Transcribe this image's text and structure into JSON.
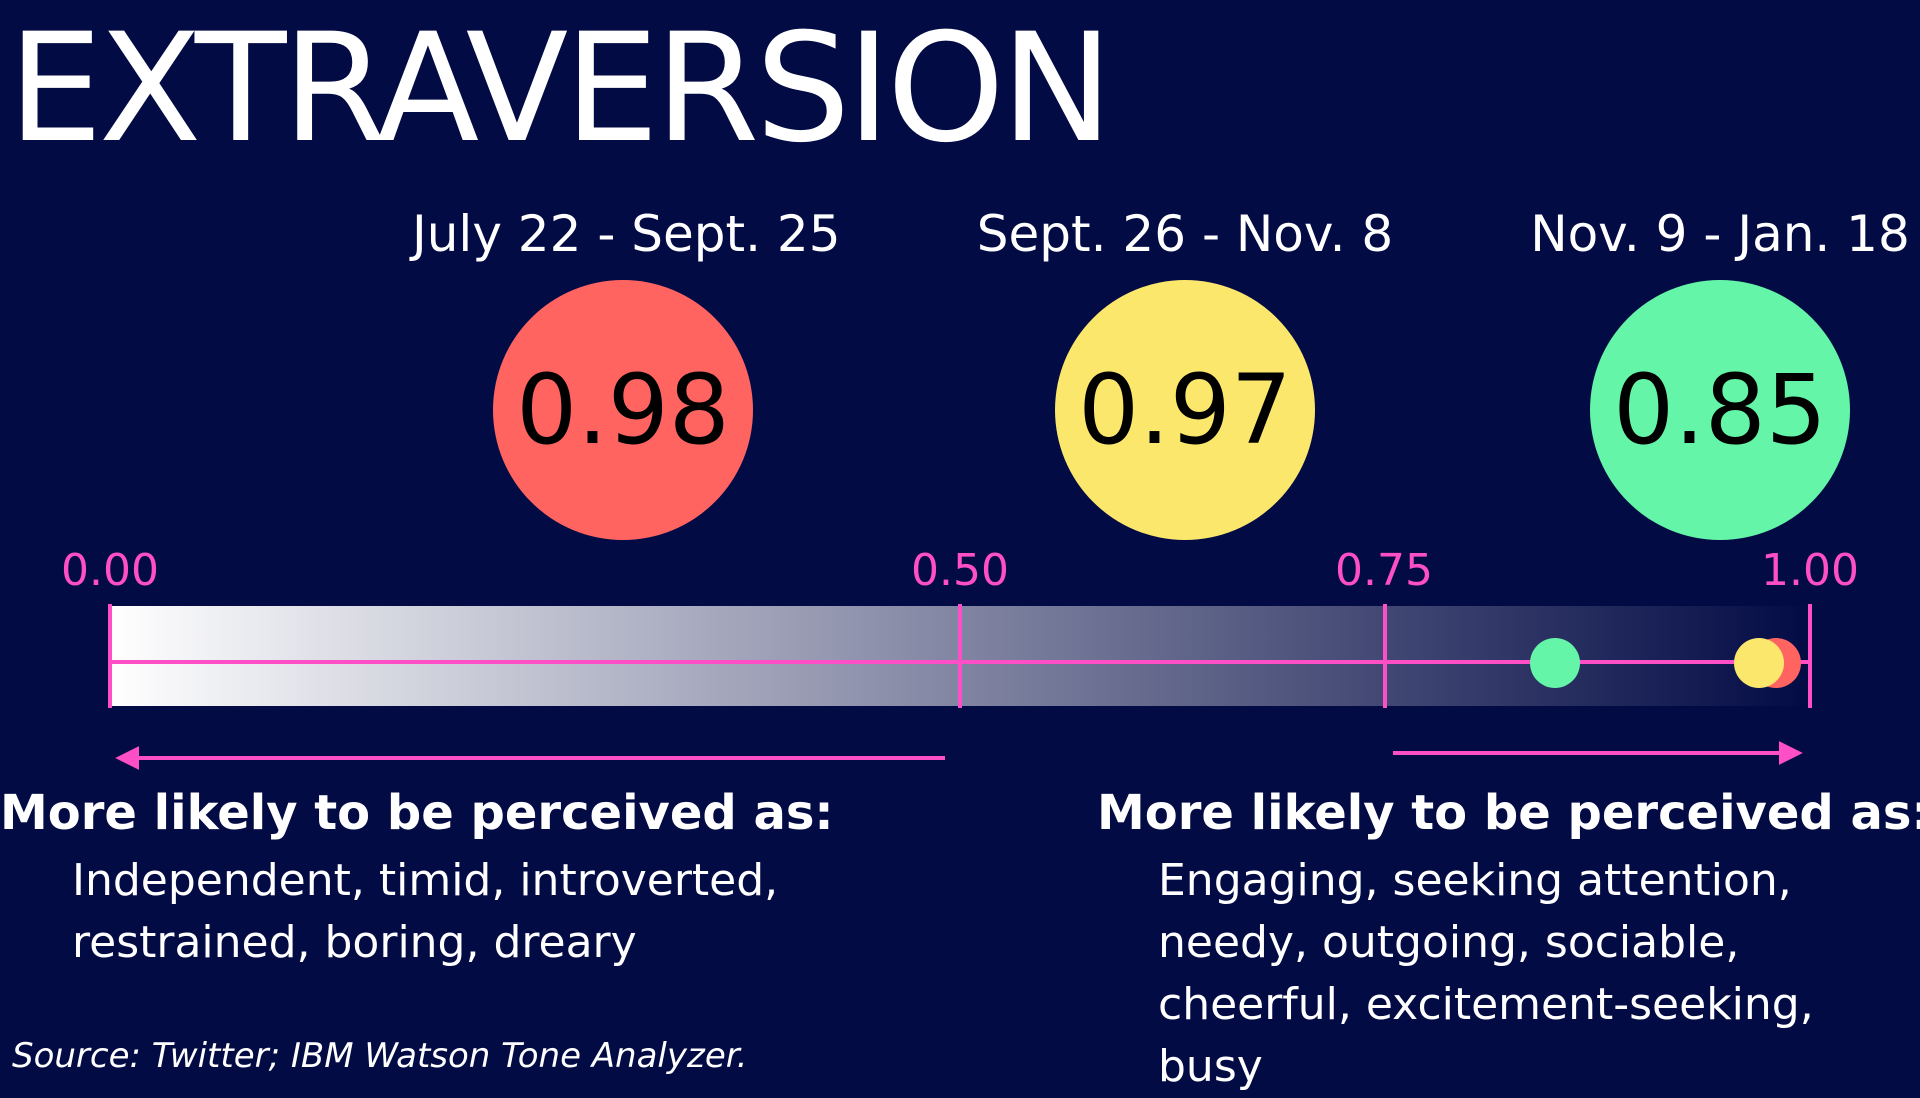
{
  "title": "EXTRAVERSION",
  "chart_data": {
    "type": "scatter",
    "title": "EXTRAVERSION",
    "xlim": [
      0,
      1
    ],
    "x_ticks": [
      "0.00",
      "0.50",
      "0.75",
      "1.00"
    ],
    "tick_values": [
      0,
      0.5,
      0.75,
      1
    ],
    "points": [
      {
        "label": "July 22 - Sept. 25",
        "value": 0.98,
        "display": "0.98",
        "color": "#ff6461"
      },
      {
        "label": "Sept. 26 - Nov. 8",
        "value": 0.97,
        "display": "0.97",
        "color": "#fbe76b"
      },
      {
        "label": "Nov. 9 - Jan. 18",
        "value": 0.85,
        "display": "0.85",
        "color": "#64f5a8"
      }
    ]
  },
  "low_side": {
    "heading": "More likely to be perceived as:",
    "description": "Independent, timid, introverted,\nrestrained, boring, dreary"
  },
  "high_side": {
    "heading": "More likely to be perceived as:",
    "description": "Engaging, seeking attention,\nneedy, outgoing, sociable,\ncheerful, excitement-seeking, busy"
  },
  "source": "Source: Twitter; IBM Watson Tone Analyzer.",
  "colors": {
    "background": "#030b45",
    "accent": "#ff4fc6",
    "gradient_start": "#ffffff"
  }
}
